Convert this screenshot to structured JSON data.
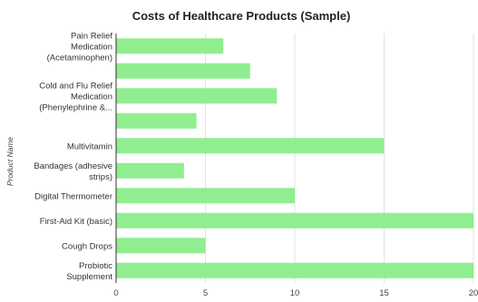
{
  "chart_data": {
    "type": "bar",
    "orientation": "horizontal",
    "title": "Costs of Healthcare Products (Sample)",
    "xlabel": "",
    "ylabel": "Product Name",
    "xlim": [
      0,
      20
    ],
    "xticks": [
      0,
      5,
      10,
      15,
      20
    ],
    "grid": true,
    "bar_color": "#90EE90",
    "categories": [
      [
        "Pain Relief",
        "Medication",
        "(Acetaminophen)"
      ],
      [],
      [
        "Cold and Flu Relief",
        "Medication",
        "(Phenylephrine &..."
      ],
      [],
      [
        "Multivitamin"
      ],
      [
        "Bandages (adhesive",
        "strips)"
      ],
      [
        "Digital Thermometer"
      ],
      [
        "First-Aid Kit (basic)"
      ],
      [
        "Cough Drops"
      ],
      [
        "Probiotic",
        "Supplement"
      ]
    ],
    "values": [
      6,
      7.5,
      9,
      4.5,
      15,
      3.8,
      10,
      20,
      5,
      20
    ]
  }
}
